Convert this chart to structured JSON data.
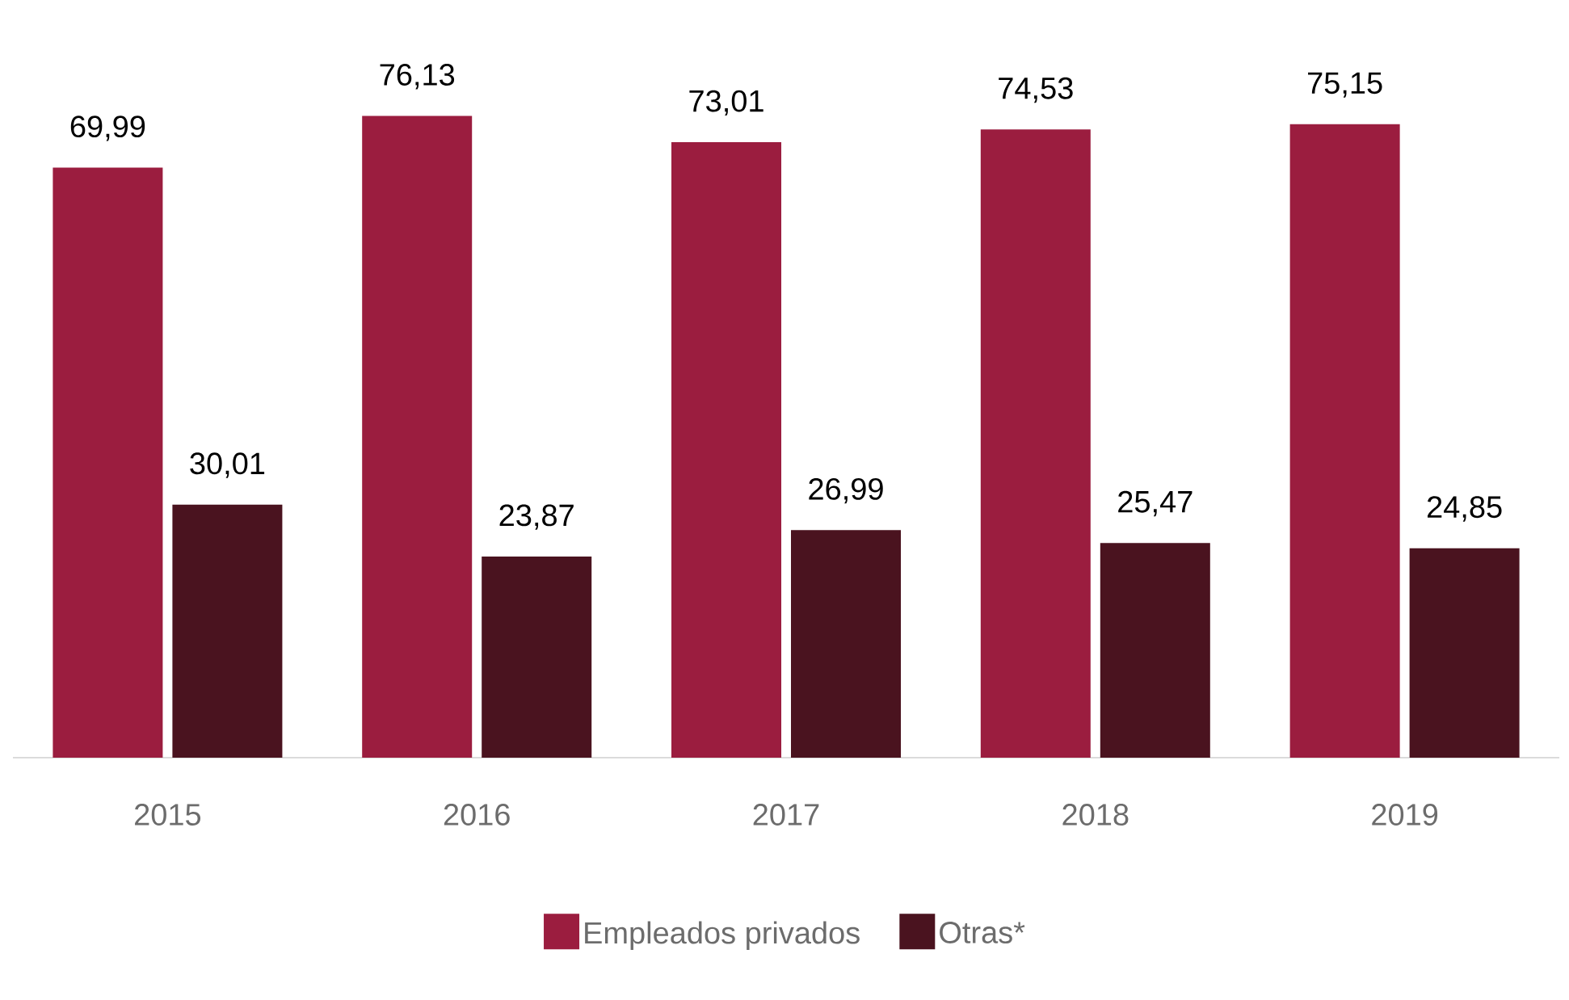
{
  "chart_data": {
    "type": "bar",
    "categories": [
      "2015",
      "2016",
      "2017",
      "2018",
      "2019"
    ],
    "series": [
      {
        "name": "Empleados privados",
        "color": "#9b1d3f",
        "values": [
          69.99,
          76.13,
          73.01,
          74.53,
          75.15
        ],
        "value_labels": [
          "69,99",
          "76,13",
          "73,01",
          "74,53",
          "75,15"
        ]
      },
      {
        "name": "Otras*",
        "color": "#4a131f",
        "values": [
          30.01,
          23.87,
          26.99,
          25.47,
          24.85
        ],
        "value_labels": [
          "30,01",
          "23,87",
          "26,99",
          "25,47",
          "24,85"
        ]
      }
    ],
    "legend": "bottom",
    "tick_labels": "x"
  }
}
